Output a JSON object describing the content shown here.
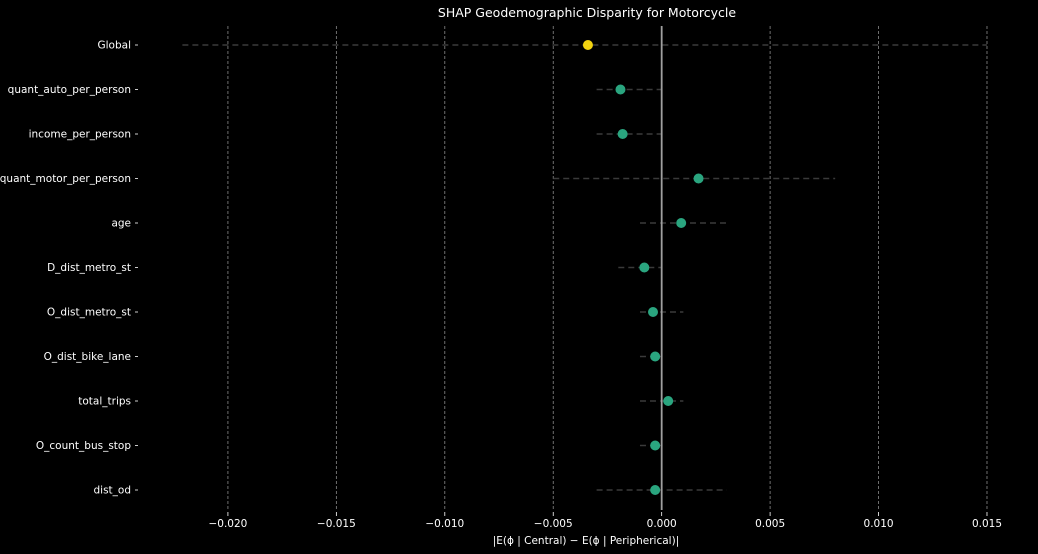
{
  "chart_data": {
    "type": "scatter",
    "title": "SHAP Geodemographic Disparity for Motorcycle",
    "xlabel": "|E(ϕ | Central) − E(ϕ | Peripherical)|",
    "ylabel": "",
    "xlim": [
      -0.0241,
      0.0156
    ],
    "xticks": [
      -0.02,
      -0.015,
      -0.01,
      -0.005,
      0.0,
      0.005,
      0.01,
      0.015
    ],
    "xtick_labels": [
      "−0.020",
      "−0.015",
      "−0.010",
      "−0.005",
      "0.000",
      "0.005",
      "0.010",
      "0.015"
    ],
    "grid": "vertical dashed",
    "reference_line_x": 0.0,
    "categories": [
      "Global",
      "quant_auto_per_person",
      "income_per_person",
      "quant_motor_per_person",
      "age",
      "D_dist_metro_st",
      "O_dist_metro_st",
      "O_dist_bike_lane",
      "total_trips",
      "O_count_bus_stop",
      "dist_od"
    ],
    "values": [
      -0.0034,
      -0.0019,
      -0.0018,
      0.0017,
      0.0009,
      -0.0008,
      -0.0004,
      -0.0003,
      0.0003,
      -0.0003,
      -0.0003
    ],
    "interval_low": [
      -0.0221,
      -0.003,
      -0.003,
      -0.005,
      -0.001,
      -0.002,
      -0.001,
      -0.001,
      -0.001,
      -0.001,
      -0.003
    ],
    "interval_high": [
      0.015,
      0.0,
      0.0,
      0.008,
      0.003,
      0.0,
      0.001,
      0.0,
      0.001,
      0.0,
      0.003
    ],
    "colors": {
      "background": "#000000",
      "global_point": "#f2d310",
      "feature_point": "#2aa57f",
      "interval_line": "#3a3a3a",
      "grid": "#8a8a8a",
      "zero_line": "#a0a0a0",
      "text": "#ffffff"
    }
  }
}
